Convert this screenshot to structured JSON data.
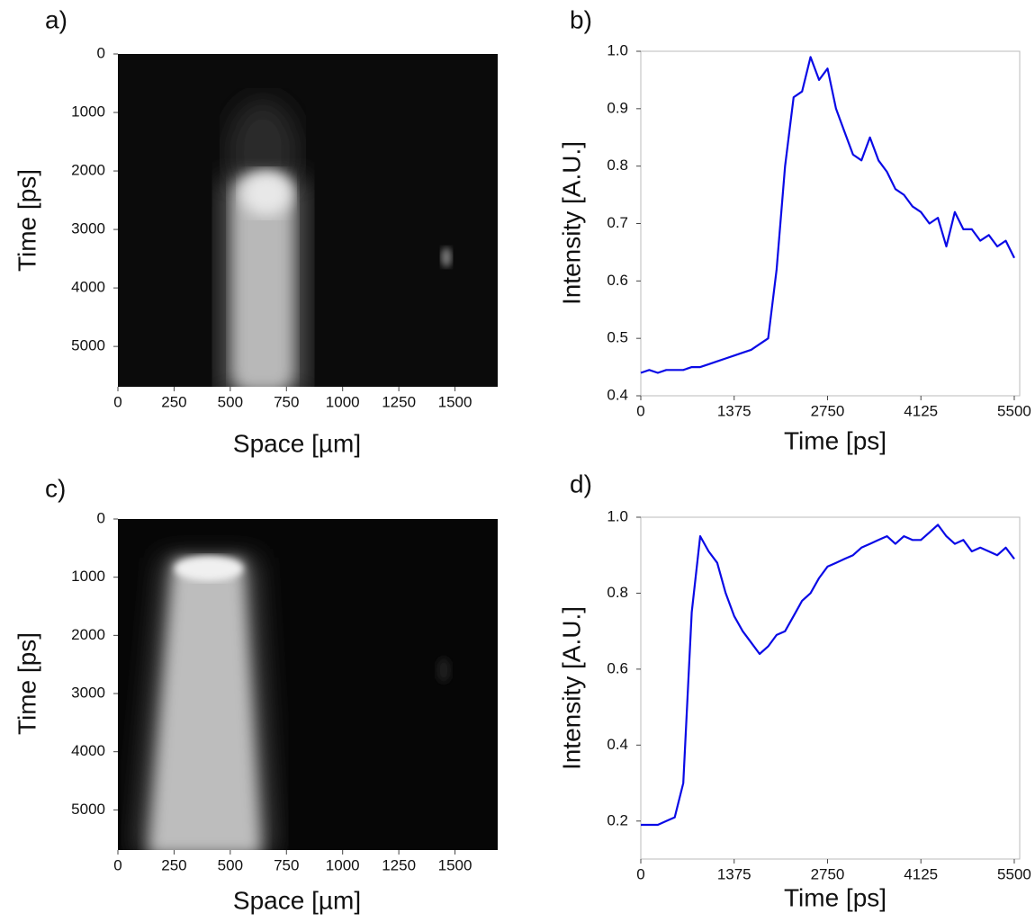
{
  "chart_data": [
    {
      "type": "image",
      "panel_label": "a)",
      "xlabel": "Space [µm]",
      "ylabel": "Time [ps]",
      "xlim": [
        0,
        1690
      ],
      "ylim": [
        5690,
        0
      ],
      "xticks": [
        0,
        250,
        500,
        750,
        1000,
        1250,
        1500
      ],
      "yticks": [
        0,
        1000,
        2000,
        3000,
        4000,
        5000
      ]
    },
    {
      "type": "line",
      "panel_label": "b)",
      "xlabel": "Time [ps]",
      "ylabel": "Intensity [A.U.]",
      "color": "#0a0ae6",
      "xlim": [
        0,
        5580
      ],
      "ylim": [
        0.4,
        1.0
      ],
      "xticks": [
        0,
        1375,
        2750,
        4125,
        5500
      ],
      "yticks": [
        0.4,
        0.5,
        0.6,
        0.7,
        0.8,
        0.9,
        {
          "value": 1,
          "label": "1.0"
        }
      ],
      "x": [
        0,
        125,
        250,
        375,
        500,
        625,
        750,
        875,
        1000,
        1125,
        1250,
        1375,
        1500,
        1625,
        1750,
        1875,
        2000,
        2125,
        2250,
        2375,
        2500,
        2625,
        2750,
        2875,
        3000,
        3125,
        3250,
        3375,
        3500,
        3625,
        3750,
        3875,
        4000,
        4125,
        4250,
        4375,
        4500,
        4625,
        4750,
        4875,
        5000,
        5125,
        5250,
        5375,
        5500
      ],
      "values": [
        0.44,
        0.445,
        0.44,
        0.445,
        0.445,
        0.445,
        0.45,
        0.45,
        0.455,
        0.46,
        0.465,
        0.47,
        0.475,
        0.48,
        0.49,
        0.5,
        0.62,
        0.8,
        0.92,
        0.93,
        0.99,
        0.95,
        0.97,
        0.9,
        0.86,
        0.82,
        0.81,
        0.85,
        0.81,
        0.79,
        0.76,
        0.75,
        0.73,
        0.72,
        0.7,
        0.71,
        0.66,
        0.72,
        0.69,
        0.69,
        0.67,
        0.68,
        0.66,
        0.67,
        0.64
      ]
    },
    {
      "type": "image",
      "panel_label": "c)",
      "xlabel": "Space [µm]",
      "ylabel": "Time [ps]",
      "xlim": [
        0,
        1690
      ],
      "ylim": [
        5690,
        0
      ],
      "xticks": [
        0,
        250,
        500,
        750,
        1000,
        1250,
        1500
      ],
      "yticks": [
        0,
        1000,
        2000,
        3000,
        4000,
        5000
      ]
    },
    {
      "type": "line",
      "panel_label": "d)",
      "xlabel": "Time [ps]",
      "ylabel": "Intensity [A.U.]",
      "color": "#0a0ae6",
      "xlim": [
        0,
        5580
      ],
      "ylim": [
        0.1,
        1.0
      ],
      "xticks": [
        0,
        1375,
        2750,
        4125,
        5500
      ],
      "yticks": [
        0.2,
        0.4,
        0.6,
        0.8,
        {
          "value": 1,
          "label": "1.0"
        }
      ],
      "x": [
        0,
        125,
        250,
        375,
        500,
        625,
        750,
        875,
        1000,
        1125,
        1250,
        1375,
        1500,
        1625,
        1750,
        1875,
        2000,
        2125,
        2250,
        2375,
        2500,
        2625,
        2750,
        2875,
        3000,
        3125,
        3250,
        3375,
        3500,
        3625,
        3750,
        3875,
        4000,
        4125,
        4250,
        4375,
        4500,
        4625,
        4750,
        4875,
        5000,
        5125,
        5250,
        5375,
        5500
      ],
      "values": [
        0.19,
        0.19,
        0.19,
        0.2,
        0.21,
        0.3,
        0.75,
        0.95,
        0.91,
        0.88,
        0.8,
        0.74,
        0.7,
        0.67,
        0.64,
        0.66,
        0.69,
        0.7,
        0.74,
        0.78,
        0.8,
        0.84,
        0.87,
        0.88,
        0.89,
        0.9,
        0.92,
        0.93,
        0.94,
        0.95,
        0.93,
        0.95,
        0.94,
        0.94,
        0.96,
        0.98,
        0.95,
        0.93,
        0.94,
        0.91,
        0.92,
        0.91,
        0.9,
        0.92,
        0.89
      ]
    }
  ]
}
